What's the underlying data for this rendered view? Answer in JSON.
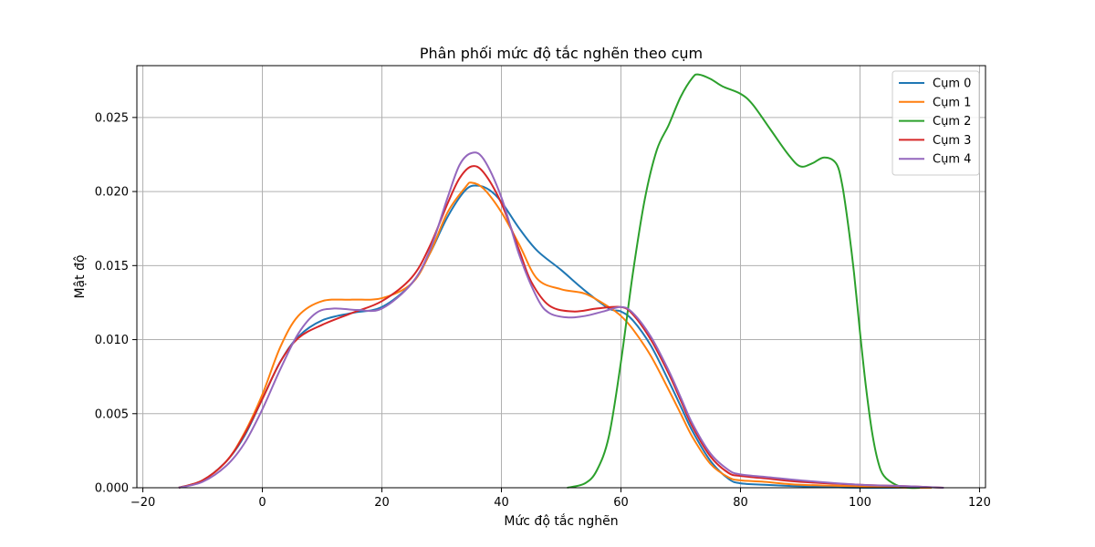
{
  "chart_data": {
    "type": "line",
    "title": "Phân phối mức độ tắc nghẽn theo cụm",
    "xlabel": "Mức độ tắc nghẽn",
    "ylabel": "Mật độ",
    "xlim": [
      -21,
      121
    ],
    "ylim": [
      0,
      0.0285
    ],
    "xticks": [
      -20,
      0,
      20,
      40,
      60,
      80,
      100,
      120
    ],
    "yticks": [
      0.0,
      0.005,
      0.01,
      0.015,
      0.02,
      0.025
    ],
    "xtick_labels": [
      "−20",
      "0",
      "20",
      "40",
      "60",
      "80",
      "100",
      "120"
    ],
    "ytick_labels": [
      "0.000",
      "0.005",
      "0.010",
      "0.015",
      "0.020",
      "0.025"
    ],
    "grid": true,
    "legend_position": "top-right",
    "series": [
      {
        "name": "Cụm 0",
        "color": "#1f77b4",
        "x": [
          -14,
          -10,
          -6,
          -3,
          0,
          3,
          6,
          10,
          15,
          20,
          25,
          28,
          31,
          34,
          36,
          38,
          40,
          43,
          46,
          50,
          54,
          58,
          60,
          62,
          65,
          68,
          70,
          72,
          75,
          78,
          80,
          84,
          90,
          100,
          108,
          112
        ],
        "y": [
          0.0,
          0.0005,
          0.0018,
          0.0035,
          0.006,
          0.0085,
          0.0102,
          0.0113,
          0.0118,
          0.0122,
          0.0138,
          0.0158,
          0.0183,
          0.0201,
          0.0204,
          0.0201,
          0.0193,
          0.0175,
          0.016,
          0.0147,
          0.0133,
          0.0121,
          0.0119,
          0.0113,
          0.0096,
          0.0072,
          0.0055,
          0.0038,
          0.0018,
          0.0006,
          0.0003,
          0.0002,
          0.0001,
          0.0,
          0.0,
          0.0
        ]
      },
      {
        "name": "Cụm 1",
        "color": "#ff7f0e",
        "x": [
          -14,
          -10,
          -6,
          -3,
          0,
          3,
          6,
          10,
          15,
          20,
          25,
          28,
          31,
          34,
          35,
          37,
          40,
          43,
          46,
          50,
          54,
          58,
          60,
          62,
          65,
          68,
          70,
          72,
          75,
          78,
          80,
          84,
          90,
          100,
          108,
          112
        ],
        "y": [
          0.0,
          0.0005,
          0.0018,
          0.0037,
          0.0063,
          0.0095,
          0.0116,
          0.0126,
          0.0127,
          0.0128,
          0.0138,
          0.0158,
          0.0186,
          0.0203,
          0.0206,
          0.0202,
          0.0186,
          0.0164,
          0.0141,
          0.0134,
          0.0131,
          0.0122,
          0.0116,
          0.0107,
          0.0089,
          0.0066,
          0.005,
          0.0034,
          0.0016,
          0.0007,
          0.0005,
          0.0004,
          0.0002,
          0.0001,
          0.0,
          0.0
        ]
      },
      {
        "name": "Cụm 2",
        "color": "#2ca02c",
        "x": [
          51,
          54,
          56,
          58,
          60,
          62,
          64,
          66,
          68,
          70,
          72,
          73,
          75,
          77,
          80,
          82,
          85,
          88,
          90,
          92,
          94,
          96,
          97,
          98,
          99,
          100,
          101,
          102,
          103,
          104,
          106,
          108,
          110
        ],
        "y": [
          0.0,
          0.0003,
          0.0012,
          0.0035,
          0.0085,
          0.0145,
          0.0195,
          0.0228,
          0.0245,
          0.0264,
          0.0277,
          0.0279,
          0.0276,
          0.0271,
          0.0266,
          0.0259,
          0.0242,
          0.0225,
          0.0217,
          0.0219,
          0.0223,
          0.0219,
          0.0205,
          0.0178,
          0.0145,
          0.0105,
          0.0068,
          0.0038,
          0.0018,
          0.0008,
          0.0002,
          0.0,
          0.0
        ]
      },
      {
        "name": "Cụm 3",
        "color": "#d62728",
        "x": [
          -14,
          -10,
          -6,
          -3,
          0,
          3,
          6,
          10,
          15,
          20,
          25,
          28,
          31,
          33,
          35,
          37,
          40,
          43,
          45,
          48,
          52,
          56,
          60,
          62,
          65,
          68,
          70,
          72,
          75,
          78,
          80,
          85,
          90,
          100,
          108,
          114
        ],
        "y": [
          0.0,
          0.0005,
          0.0018,
          0.0036,
          0.006,
          0.0085,
          0.0101,
          0.011,
          0.0118,
          0.0126,
          0.0142,
          0.0163,
          0.0192,
          0.0209,
          0.0217,
          0.0213,
          0.0192,
          0.016,
          0.0139,
          0.0123,
          0.0119,
          0.0121,
          0.0122,
          0.0117,
          0.01,
          0.0077,
          0.0059,
          0.0041,
          0.0021,
          0.001,
          0.0008,
          0.0006,
          0.0004,
          0.0002,
          0.0001,
          0.0
        ]
      },
      {
        "name": "Cụm 4",
        "color": "#9467bd",
        "x": [
          -14,
          -10,
          -6,
          -3,
          0,
          3,
          6,
          9,
          12,
          16,
          20,
          25,
          28,
          31,
          33,
          35,
          37,
          40,
          43,
          46,
          48,
          51,
          54,
          57,
          60,
          62,
          65,
          68,
          70,
          72,
          75,
          78,
          80,
          85,
          90,
          100,
          108,
          114
        ],
        "y": [
          0.0,
          0.0004,
          0.0015,
          0.003,
          0.0053,
          0.008,
          0.0104,
          0.0118,
          0.0121,
          0.012,
          0.0121,
          0.0138,
          0.016,
          0.0196,
          0.0218,
          0.0226,
          0.0222,
          0.0196,
          0.0157,
          0.0128,
          0.0118,
          0.0115,
          0.0116,
          0.0119,
          0.0122,
          0.0118,
          0.0102,
          0.0079,
          0.0061,
          0.0043,
          0.0023,
          0.0012,
          0.0009,
          0.0007,
          0.0005,
          0.0002,
          0.0001,
          0.0
        ]
      }
    ]
  }
}
